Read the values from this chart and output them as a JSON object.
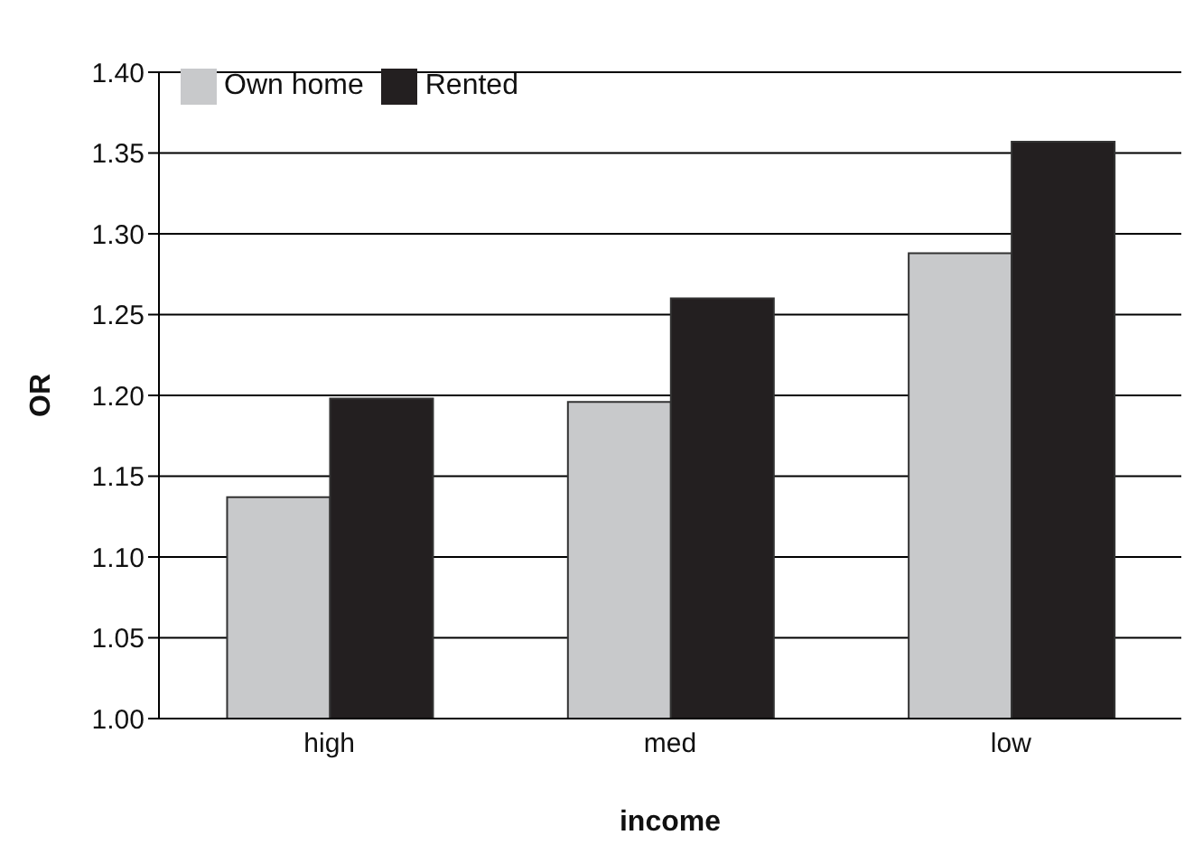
{
  "chart_data": {
    "type": "bar",
    "xlabel": "income",
    "ylabel": "OR",
    "categories": [
      "high",
      "med",
      "low"
    ],
    "series": [
      {
        "name": "Own home",
        "color": "#c8c9cb",
        "values": [
          1.137,
          1.196,
          1.288
        ]
      },
      {
        "name": "Rented",
        "color": "#231f20",
        "values": [
          1.198,
          1.26,
          1.357
        ]
      }
    ],
    "ylim": [
      1,
      1.4
    ],
    "yticks": [
      {
        "value": 1,
        "label": "1.00"
      },
      {
        "value": 1.05,
        "label": "1.05"
      },
      {
        "value": 1.1,
        "label": "1.10"
      },
      {
        "value": 1.15,
        "label": "1.15"
      },
      {
        "value": 1.2,
        "label": "1.20"
      },
      {
        "value": 1.25,
        "label": "1.25"
      },
      {
        "value": 1.3,
        "label": "1.30"
      },
      {
        "value": 1.35,
        "label": "1.35"
      },
      {
        "value": 1.4,
        "label": "1.40"
      }
    ],
    "grid": "y",
    "legend": "top left"
  }
}
